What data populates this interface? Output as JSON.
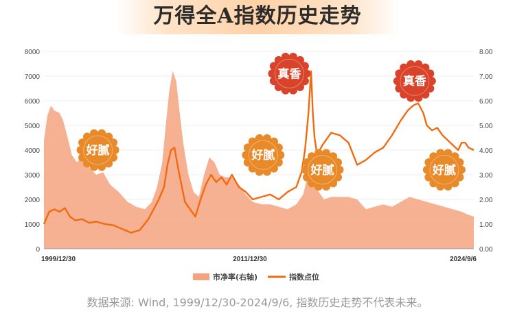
{
  "title": "万得全A指数历史走势",
  "source_note": "数据来源: Wind, 1999/12/30-2024/9/6, 指数历史走势不代表未来。",
  "colors": {
    "pb_fill": "#f4a27f",
    "index_line": "#f26a10",
    "bull_badge": "#d8432a",
    "bear_badge": "#e98a2a"
  },
  "chart_data": {
    "type": "area",
    "x_tick_labels": [
      "1999/12/30",
      "2011/12/30",
      "2024/9/6"
    ],
    "left_axis": {
      "ylim": [
        0,
        8000
      ],
      "ticks": [
        "0",
        "1000",
        "2000",
        "3000",
        "4000",
        "5000",
        "6000",
        "7000",
        "8000"
      ]
    },
    "right_axis": {
      "ylim": [
        0,
        8
      ],
      "ticks": [
        "0.00",
        "1.00",
        "2.00",
        "3.00",
        "4.00",
        "5.00",
        "6.00",
        "7.00",
        "8.00"
      ]
    },
    "legend": [
      "市净率(右轴)",
      "指数点位"
    ],
    "series": [
      {
        "name": "市净率(右轴)",
        "axis": "right",
        "type": "area",
        "x": [
          2000.0,
          2000.2,
          2000.4,
          2000.6,
          2000.9,
          2001.1,
          2001.4,
          2001.6,
          2001.9,
          2002.2,
          2002.6,
          2003.0,
          2003.4,
          2003.8,
          2004.3,
          2004.8,
          2005.3,
          2005.8,
          2006.2,
          2006.5,
          2006.8,
          2007.0,
          2007.2,
          2007.4,
          2007.6,
          2007.8,
          2008.0,
          2008.3,
          2008.6,
          2008.9,
          2009.2,
          2009.5,
          2009.8,
          2010.1,
          2010.4,
          2010.8,
          2011.2,
          2011.6,
          2012.0,
          2012.5,
          2013.0,
          2013.5,
          2014.0,
          2014.5,
          2014.9,
          2015.1,
          2015.3,
          2015.45,
          2015.6,
          2015.8,
          2016.1,
          2016.5,
          2017.0,
          2017.5,
          2018.0,
          2018.5,
          2019.0,
          2019.5,
          2020.0,
          2020.5,
          2021.0,
          2021.5,
          2022.0,
          2022.5,
          2023.0,
          2023.5,
          2024.0,
          2024.3,
          2024.7
        ],
        "values": [
          4.4,
          5.4,
          5.8,
          5.6,
          5.5,
          5.2,
          4.4,
          3.8,
          3.5,
          3.8,
          3.3,
          3.0,
          3.1,
          2.6,
          2.3,
          1.9,
          1.7,
          1.6,
          1.9,
          2.5,
          3.5,
          5.0,
          6.4,
          7.2,
          6.8,
          5.5,
          4.3,
          3.0,
          2.3,
          2.1,
          3.0,
          3.7,
          3.5,
          3.0,
          2.9,
          2.9,
          2.6,
          2.2,
          1.9,
          1.8,
          1.8,
          1.7,
          1.6,
          1.8,
          2.2,
          2.8,
          3.4,
          3.9,
          2.5,
          2.3,
          2.0,
          2.1,
          2.1,
          2.1,
          2.0,
          1.6,
          1.7,
          1.8,
          1.7,
          1.9,
          2.1,
          2.0,
          1.9,
          1.8,
          1.7,
          1.6,
          1.5,
          1.4,
          1.3
        ]
      },
      {
        "name": "指数点位",
        "axis": "left",
        "type": "line",
        "x": [
          2000.0,
          2000.3,
          2000.6,
          2000.9,
          2001.2,
          2001.5,
          2001.8,
          2002.2,
          2002.6,
          2003.0,
          2003.5,
          2004.0,
          2004.5,
          2005.0,
          2005.5,
          2006.0,
          2006.3,
          2006.6,
          2006.9,
          2007.1,
          2007.3,
          2007.5,
          2007.7,
          2007.9,
          2008.1,
          2008.4,
          2008.7,
          2009.0,
          2009.3,
          2009.6,
          2009.9,
          2010.2,
          2010.5,
          2010.8,
          2011.2,
          2011.6,
          2012.0,
          2012.5,
          2013.0,
          2013.5,
          2014.0,
          2014.5,
          2014.8,
          2015.0,
          2015.2,
          2015.35,
          2015.45,
          2015.55,
          2015.7,
          2016.0,
          2016.5,
          2017.0,
          2017.5,
          2018.0,
          2018.5,
          2019.0,
          2019.5,
          2020.0,
          2020.5,
          2020.9,
          2021.2,
          2021.5,
          2021.8,
          2022.0,
          2022.3,
          2022.6,
          2022.9,
          2023.2,
          2023.5,
          2023.8,
          2024.0,
          2024.2,
          2024.4,
          2024.7
        ],
        "values": [
          1000,
          1500,
          1600,
          1500,
          1650,
          1300,
          1150,
          1200,
          1050,
          1100,
          1000,
          950,
          800,
          650,
          750,
          1200,
          1600,
          2000,
          2500,
          3400,
          4000,
          4100,
          3300,
          2600,
          1900,
          1600,
          1300,
          2000,
          2600,
          3000,
          2700,
          2900,
          2600,
          3000,
          2500,
          2300,
          2000,
          2100,
          2200,
          2000,
          2300,
          2500,
          3100,
          4000,
          5500,
          7200,
          5500,
          4500,
          3800,
          4200,
          4700,
          4600,
          4300,
          3400,
          3600,
          3900,
          4100,
          4600,
          5200,
          5600,
          5800,
          5900,
          5500,
          5000,
          4800,
          4900,
          4600,
          4400,
          4200,
          4000,
          4300,
          4300,
          4100,
          4000
        ]
      }
    ],
    "annotations": [
      {
        "label": "好腻",
        "kind": "bear",
        "x": 2003.1,
        "y": 4000
      },
      {
        "label": "好腻",
        "kind": "bear",
        "x": 2012.6,
        "y": 3800
      },
      {
        "label": "好腻",
        "kind": "bear",
        "x": 2016.0,
        "y": 3200
      },
      {
        "label": "好腻",
        "kind": "bear",
        "x": 2023.0,
        "y": 3200
      },
      {
        "label": "真香",
        "kind": "bull",
        "x": 2014.1,
        "y": 7100
      },
      {
        "label": "真香",
        "kind": "bull",
        "x": 2021.3,
        "y": 6800
      }
    ]
  }
}
